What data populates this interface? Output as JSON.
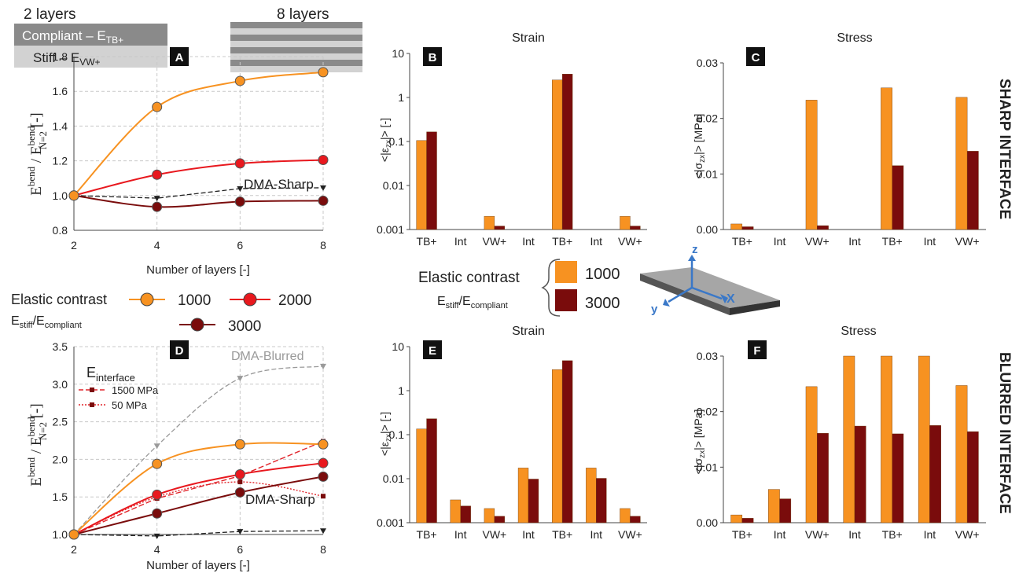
{
  "colors": {
    "c1000": "#f79221",
    "c2000": "#e8181e",
    "c3000": "#7a0c0c",
    "dma_sharp": "#222222",
    "dma_blurred": "#9a9a9a",
    "interface_lines": "#e0242a"
  },
  "header": {
    "two_layers": "2 layers",
    "eight_layers": "8 layers",
    "compliant_label": "Compliant – E",
    "compliant_sub": "TB+",
    "stiff_label": "Stiff – E",
    "stiff_sub": "VW+"
  },
  "sides": {
    "sharp": "SHARP INTERFACE",
    "blurred": "BLURRED INTERFACE"
  },
  "legend_left": {
    "title": "Elastic contrast",
    "ratio_e1": "E",
    "ratio_s1": "stiff",
    "ratio_mid": "/E",
    "ratio_s2": "compliant",
    "s1000": "1000",
    "s2000": "2000",
    "s3000": "3000"
  },
  "legend_center": {
    "title": "Elastic contrast",
    "ratio_e1": "E",
    "ratio_s1": "stiff",
    "ratio_mid": "/E",
    "ratio_s2": "compliant",
    "s1000": "1000",
    "s3000": "3000"
  },
  "beam_axes": {
    "z": "z",
    "x": "X",
    "y": "y"
  },
  "chart_data": [
    {
      "panel": "A",
      "type": "line",
      "xlabel": "Number of layers [-]",
      "ylabel_main": "E",
      "ylabel_sup": "bend",
      "ylabel_mid": " / E",
      "ylabel_sup2": "bend",
      "ylabel_sub2": "N=2",
      "ylabel_unit": " [-]",
      "x": [
        2,
        4,
        6,
        8
      ],
      "xlim": [
        2,
        8
      ],
      "ylim": [
        0.8,
        1.8
      ],
      "xticks": [
        "2",
        "4",
        "6",
        "8"
      ],
      "yticks": [
        "0.8",
        "1.0",
        "1.2",
        "1.4",
        "1.6",
        "1.8"
      ],
      "grid": true,
      "annotations": [
        "DMA-Sharp"
      ],
      "series": [
        {
          "name": "1000",
          "values": [
            1.0,
            1.51,
            1.66,
            1.71
          ]
        },
        {
          "name": "2000",
          "values": [
            1.0,
            1.12,
            1.185,
            1.205
          ]
        },
        {
          "name": "3000",
          "values": [
            1.0,
            0.935,
            0.965,
            0.97
          ]
        },
        {
          "name": "DMA-Sharp",
          "values": [
            1.0,
            0.985,
            1.04,
            1.045
          ]
        }
      ]
    },
    {
      "panel": "D",
      "type": "line",
      "xlabel": "Number of layers [-]",
      "ylabel_main": "E",
      "ylabel_sup": "bend",
      "ylabel_mid": " / E",
      "ylabel_sup2": "bend",
      "ylabel_sub2": "N=2",
      "ylabel_unit": " [-]",
      "x": [
        2,
        4,
        6,
        8
      ],
      "xlim": [
        2,
        8
      ],
      "ylim": [
        1.0,
        3.5
      ],
      "xticks": [
        "2",
        "4",
        "6",
        "8"
      ],
      "yticks": [
        "1.0",
        "1.5",
        "2.0",
        "2.5",
        "3.0",
        "3.5"
      ],
      "grid": true,
      "annotations": [
        "DMA-Blurred",
        "DMA-Sharp"
      ],
      "interface_legend": {
        "title": "E",
        "title_sub": "interface",
        "l1500": "1500 MPa",
        "l50": "50 MPa"
      },
      "series": [
        {
          "name": "1000",
          "values": [
            1.0,
            1.94,
            2.2,
            2.2
          ]
        },
        {
          "name": "2000",
          "values": [
            1.0,
            1.53,
            1.8,
            1.95
          ]
        },
        {
          "name": "3000",
          "values": [
            1.0,
            1.28,
            1.56,
            1.77
          ]
        },
        {
          "name": "DMA-Blurred",
          "values": [
            1.0,
            2.18,
            3.08,
            3.24
          ]
        },
        {
          "name": "DMA-Sharp",
          "values": [
            1.0,
            0.98,
            1.04,
            1.05
          ]
        },
        {
          "name": "1500 MPa",
          "values": [
            1.0,
            1.48,
            1.78,
            2.24
          ]
        },
        {
          "name": "50 MPa",
          "values": [
            1.0,
            1.5,
            1.7,
            1.51
          ]
        }
      ]
    },
    {
      "panel": "B",
      "type": "bar",
      "title": "Strain",
      "ylabel_pre": "<|ε",
      "ylabel_sub": "zx",
      "ylabel_post": "|> [-]",
      "log": true,
      "ylim": [
        0.001,
        10
      ],
      "yticks": [
        "0.001",
        "0.01",
        "0.1",
        "1",
        "10"
      ],
      "categories": [
        "TB+",
        "Int",
        "VW+",
        "Int",
        "TB+",
        "Int",
        "VW+"
      ],
      "series": [
        {
          "name": "1000",
          "values": [
            0.105,
            null,
            0.002,
            null,
            2.5,
            null,
            0.002
          ]
        },
        {
          "name": "3000",
          "values": [
            0.165,
            null,
            0.0012,
            null,
            3.4,
            null,
            0.0012
          ]
        }
      ]
    },
    {
      "panel": "C",
      "type": "bar",
      "title": "Stress",
      "ylabel_pre": "<|σ",
      "ylabel_sub": "zx",
      "ylabel_post": "|> [MPa]",
      "log": false,
      "ylim": [
        0,
        0.03
      ],
      "yticks": [
        "0.00",
        "0.01",
        "0.02",
        "0.03"
      ],
      "categories": [
        "TB+",
        "Int",
        "VW+",
        "Int",
        "TB+",
        "Int",
        "VW+"
      ],
      "series": [
        {
          "name": "1000",
          "values": [
            0.001,
            null,
            0.0233,
            null,
            0.0255,
            null,
            0.0238
          ]
        },
        {
          "name": "3000",
          "values": [
            0.0005,
            null,
            0.0007,
            null,
            0.0115,
            null,
            0.0141
          ]
        }
      ]
    },
    {
      "panel": "E",
      "type": "bar",
      "title": "Strain",
      "ylabel_pre": "<|ε",
      "ylabel_sub": "zx",
      "ylabel_post": "|> [-]",
      "log": true,
      "ylim": [
        0.001,
        10
      ],
      "yticks": [
        "0.001",
        "0.01",
        "0.1",
        "1",
        "10"
      ],
      "categories": [
        "TB+",
        "Int",
        "VW+",
        "Int",
        "TB+",
        "Int",
        "VW+"
      ],
      "series": [
        {
          "name": "1000",
          "values": [
            0.135,
            0.0033,
            0.0021,
            0.0175,
            3.0,
            0.0175,
            0.0021
          ]
        },
        {
          "name": "3000",
          "values": [
            0.23,
            0.0024,
            0.0014,
            0.0098,
            4.8,
            0.0102,
            0.0014
          ]
        }
      ]
    },
    {
      "panel": "F",
      "type": "bar",
      "title": "Stress",
      "ylabel_pre": "<|σ",
      "ylabel_sub": "zx",
      "ylabel_post": "|> [MPa]",
      "log": false,
      "ylim": [
        0,
        0.03
      ],
      "yticks": [
        "0.00",
        "0.01",
        "0.02",
        "0.03"
      ],
      "categories": [
        "TB+",
        "Int",
        "VW+",
        "Int",
        "TB+",
        "Int",
        "VW+"
      ],
      "series": [
        {
          "name": "1000",
          "values": [
            0.0014,
            0.006,
            0.0245,
            0.031,
            0.03,
            0.0312,
            0.0247
          ]
        },
        {
          "name": "3000",
          "values": [
            0.0008,
            0.0043,
            0.0161,
            0.0174,
            0.016,
            0.0175,
            0.0164
          ]
        }
      ]
    }
  ]
}
